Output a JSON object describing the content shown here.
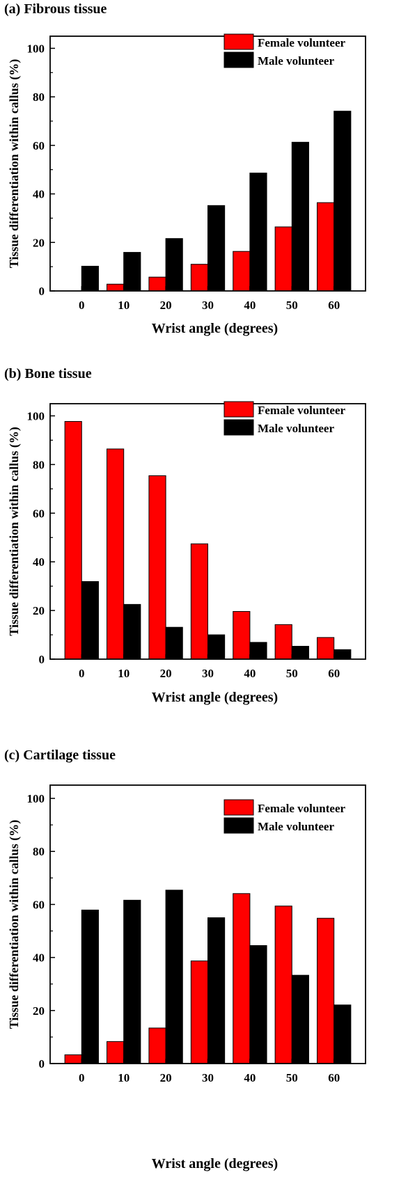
{
  "chart_data": [
    {
      "type": "bar",
      "title": "(a) Fibrous tissue",
      "xlabel": "Wrist angle (degrees)",
      "ylabel": "Tissue differentiation within callus (%)",
      "categories": [
        "0",
        "10",
        "20",
        "30",
        "40",
        "50",
        "60"
      ],
      "yticks": [
        "0",
        "20",
        "40",
        "60",
        "80",
        "100"
      ],
      "ylim": [
        0,
        105
      ],
      "legend_position": "top-right",
      "series": [
        {
          "name": "Female volunteer",
          "color": "#ff0000",
          "values": [
            0,
            2.8,
            5.7,
            11,
            16.3,
            26.4,
            36.4
          ]
        },
        {
          "name": "Male volunteer",
          "color": "#000000",
          "values": [
            10.2,
            15.9,
            21.6,
            35.2,
            48.6,
            61.3,
            74.1
          ]
        }
      ]
    },
    {
      "type": "bar",
      "title": "(b) Bone tissue",
      "xlabel": "Wrist angle (degrees)",
      "ylabel": "Tissue differentiation within callus (%)",
      "categories": [
        "0",
        "10",
        "20",
        "30",
        "40",
        "50",
        "60"
      ],
      "yticks": [
        "0",
        "20",
        "40",
        "60",
        "80",
        "100"
      ],
      "ylim": [
        0,
        105
      ],
      "legend_position": "top-right",
      "series": [
        {
          "name": "Female volunteer",
          "color": "#ff0000",
          "values": [
            97.7,
            86.4,
            75.4,
            47.4,
            19.6,
            14.2,
            8.9
          ]
        },
        {
          "name": "Male volunteer",
          "color": "#000000",
          "values": [
            31.9,
            22.5,
            13.1,
            10,
            6.9,
            5.3,
            3.9
          ]
        }
      ]
    },
    {
      "type": "bar",
      "title": "(c) Cartilage tissue",
      "xlabel": "Wrist angle (degrees)",
      "ylabel": "Tissue differentiation within callus (%)",
      "categories": [
        "0",
        "10",
        "20",
        "30",
        "40",
        "50",
        "60"
      ],
      "yticks": [
        "0",
        "20",
        "40",
        "60",
        "80",
        "100"
      ],
      "ylim": [
        0,
        105
      ],
      "legend_position": "top-right",
      "series": [
        {
          "name": "Female volunteer",
          "color": "#ff0000",
          "values": [
            3.3,
            8.3,
            13.4,
            38.7,
            64.1,
            59.4,
            54.8
          ]
        },
        {
          "name": "Male volunteer",
          "color": "#000000",
          "values": [
            57.9,
            61.6,
            65.4,
            55,
            44.5,
            33.3,
            22.1
          ]
        }
      ]
    }
  ]
}
